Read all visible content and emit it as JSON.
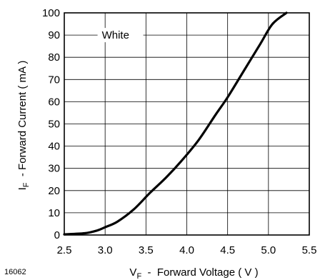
{
  "figure_id": "16062",
  "chart_data": {
    "type": "line",
    "title": "",
    "xlabel_main": "V",
    "xlabel_sub": "F",
    "xlabel_rest": "  -  Forward Voltage ( V )",
    "ylabel_main": "I",
    "ylabel_sub": "F",
    "ylabel_rest": "  - Forward Current ( mA )",
    "xlim": [
      2.5,
      5.5
    ],
    "ylim": [
      0,
      100
    ],
    "xticks": [
      "2.5",
      "3.0",
      "3.5",
      "4.0",
      "4.5",
      "5.0",
      "5.5"
    ],
    "yticks": [
      "0",
      "10",
      "20",
      "30",
      "40",
      "50",
      "60",
      "70",
      "80",
      "90",
      "100"
    ],
    "grid": true,
    "series": [
      {
        "name": "White",
        "color": "#000000",
        "x": [
          2.5,
          2.75,
          2.9,
          3.0,
          3.15,
          3.35,
          3.55,
          3.75,
          3.95,
          4.15,
          4.35,
          4.5,
          4.7,
          4.9,
          5.05,
          5.22
        ],
        "y": [
          0.3,
          0.8,
          2,
          3.5,
          6,
          11.5,
          19,
          26,
          34,
          43,
          54,
          62,
          74,
          86,
          95,
          100
        ]
      }
    ]
  }
}
